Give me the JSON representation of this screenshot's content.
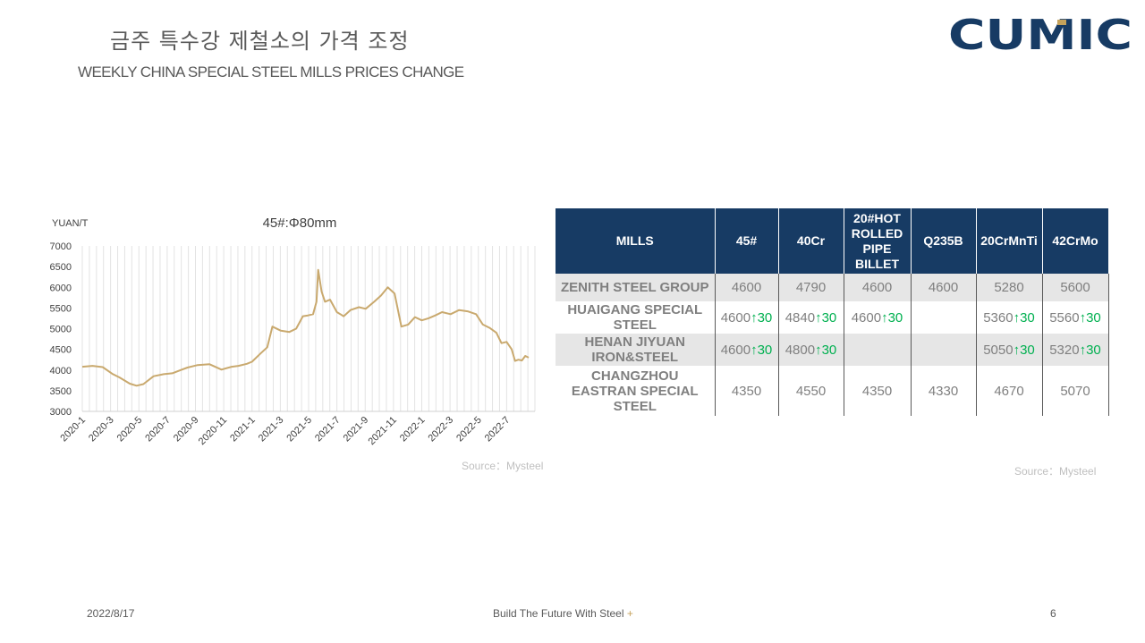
{
  "header": {
    "title_ko": "금주 특수강 제철소의 가격 조정",
    "title_en": "WEEKLY CHINA SPECIAL STEEL MILLS PRICES CHANGE",
    "logo_text": "CUMIC",
    "logo_color": "#173b64",
    "logo_accent": "#c5a25b"
  },
  "chart_data": {
    "type": "line",
    "title": "45#:Φ80mm",
    "ylabel": "YUAN/T",
    "ylim": [
      3000,
      7000
    ],
    "yticks": [
      "7000",
      "6500",
      "6000",
      "5500",
      "5000",
      "4500",
      "4000",
      "3500",
      "3000"
    ],
    "xticks": [
      "2020-1",
      "2020-3",
      "2020-5",
      "2020-7",
      "2020-9",
      "2020-11",
      "2021-1",
      "2021-3",
      "2021-5",
      "2021-7",
      "2021-9",
      "2021-11",
      "2022-1",
      "2022-3",
      "2022-5",
      "2022-7"
    ],
    "grid": "vertical",
    "color": "#c9a96e",
    "series": [
      {
        "x": [
          2020.0,
          2020.06,
          2020.12,
          2020.18,
          2020.22,
          2020.28,
          2020.32,
          2020.36,
          2020.42,
          2020.48,
          2020.53,
          2020.58,
          2020.62,
          2020.68,
          2020.75,
          2020.82,
          2020.88,
          2020.92,
          2020.97,
          2021.0,
          2021.05,
          2021.09,
          2021.12,
          2021.17,
          2021.22,
          2021.26,
          2021.3,
          2021.33,
          2021.36,
          2021.38,
          2021.39,
          2021.41,
          2021.43,
          2021.46,
          2021.5,
          2021.54,
          2021.58,
          2021.63,
          2021.67,
          2021.72,
          2021.76,
          2021.8,
          2021.84,
          2021.88,
          2021.92,
          2021.96,
          2022.0,
          2022.04,
          2022.08,
          2022.12,
          2022.17,
          2022.22,
          2022.27,
          2022.32,
          2022.36,
          2022.4,
          2022.44,
          2022.47,
          2022.5,
          2022.53,
          2022.55,
          2022.57,
          2022.59,
          2022.61,
          2022.63
        ],
        "y": [
          4080,
          4100,
          4070,
          3900,
          3820,
          3670,
          3620,
          3660,
          3850,
          3900,
          3920,
          4000,
          4060,
          4120,
          4140,
          4010,
          4080,
          4100,
          4150,
          4200,
          4400,
          4550,
          5050,
          4950,
          4920,
          5000,
          5300,
          5320,
          5350,
          5650,
          6420,
          5900,
          5650,
          5700,
          5400,
          5300,
          5450,
          5520,
          5480,
          5650,
          5800,
          6000,
          5850,
          5050,
          5100,
          5280,
          5200,
          5250,
          5320,
          5400,
          5350,
          5450,
          5420,
          5350,
          5100,
          5020,
          4900,
          4650,
          4680,
          4500,
          4220,
          4250,
          4230,
          4340,
          4300
        ]
      }
    ]
  },
  "chart_source": "Source：Mysteel",
  "table": {
    "headers": [
      "MILLS",
      "45#",
      "40Cr",
      "20#HOT ROLLED PIPE BILLET",
      "Q235B",
      "20CrMnTi",
      "42CrMo"
    ],
    "rows": [
      {
        "mill": "ZENITH STEEL GROUP",
        "cells": [
          {
            "v": "4600",
            "c": ""
          },
          {
            "v": "4790",
            "c": ""
          },
          {
            "v": "4600",
            "c": ""
          },
          {
            "v": "4600",
            "c": ""
          },
          {
            "v": "5280",
            "c": ""
          },
          {
            "v": "5600",
            "c": ""
          }
        ]
      },
      {
        "mill": "HUAIGANG SPECIAL STEEL",
        "cells": [
          {
            "v": "4600",
            "c": "↑30"
          },
          {
            "v": "4840",
            "c": "↑30"
          },
          {
            "v": "4600",
            "c": "↑30"
          },
          {
            "v": "",
            "c": ""
          },
          {
            "v": "5360",
            "c": "↑30"
          },
          {
            "v": "5560",
            "c": "↑30"
          }
        ]
      },
      {
        "mill": "HENAN JIYUAN IRON&STEEL",
        "cells": [
          {
            "v": "4600",
            "c": "↑30"
          },
          {
            "v": "4800",
            "c": "↑30"
          },
          {
            "v": "",
            "c": ""
          },
          {
            "v": "",
            "c": ""
          },
          {
            "v": "5050",
            "c": "↑30"
          },
          {
            "v": "5320",
            "c": "↑30"
          }
        ]
      },
      {
        "mill": "CHANGZHOU EASTRAN SPECIAL STEEL",
        "cells": [
          {
            "v": "4350",
            "c": ""
          },
          {
            "v": "4550",
            "c": ""
          },
          {
            "v": "4350",
            "c": ""
          },
          {
            "v": "4330",
            "c": ""
          },
          {
            "v": "4670",
            "c": ""
          },
          {
            "v": "5070",
            "c": ""
          }
        ]
      }
    ],
    "header_bg": "#173b64",
    "row_stripe": "#e6e6e6",
    "change_color": "#00b050"
  },
  "table_source": "Source：Mysteel",
  "footer": {
    "date": "2022/8/17",
    "slogan": "Build The Future With Steel",
    "slogan_mark": "+",
    "page": "6"
  }
}
